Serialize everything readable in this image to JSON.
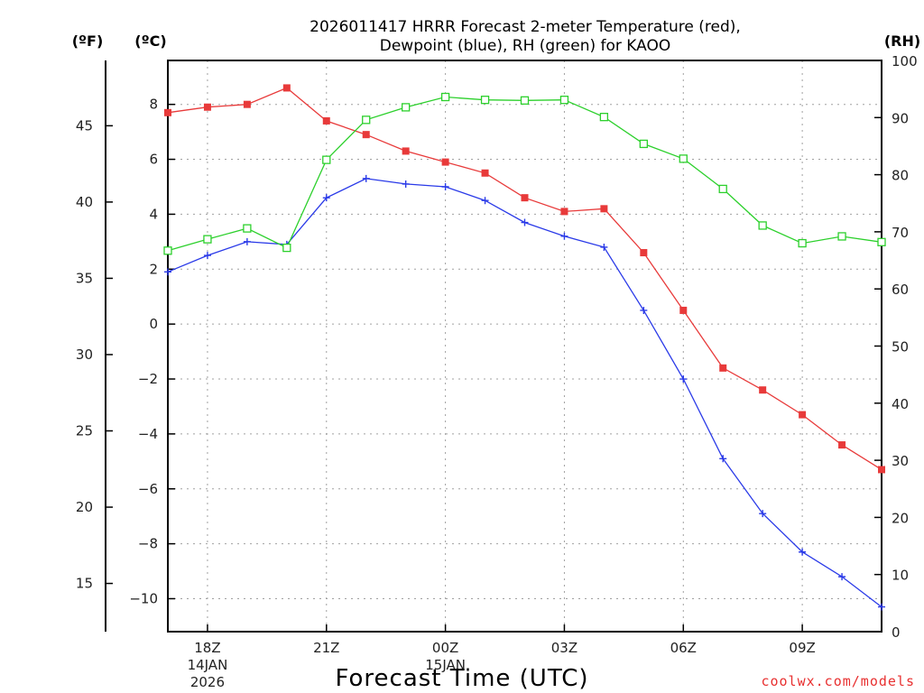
{
  "chart_data": {
    "type": "line",
    "title_line1": "2026011417 HRRR Forecast 2-meter Temperature (red),",
    "title_line2": "Dewpoint (blue), RH (green) for KAOO",
    "xlabel": "Forecast Time (UTC)",
    "credit": "coolwx.com/models",
    "unit_f": "(ºF)",
    "unit_c": "(ºC)",
    "unit_rh": "(RH)",
    "x_hours": [
      17,
      18,
      19,
      20,
      21,
      22,
      23,
      24,
      25,
      26,
      27,
      28,
      29,
      30,
      31,
      32,
      33,
      34,
      35
    ],
    "xlim": [
      17,
      35
    ],
    "ylim_c": [
      -11.2,
      9.6
    ],
    "ylim_rh": [
      0,
      100
    ],
    "x_ticks": [
      {
        "hour": 18,
        "label": "18Z",
        "sub1": "14JAN",
        "sub2": "2026"
      },
      {
        "hour": 21,
        "label": "21Z",
        "sub1": "",
        "sub2": ""
      },
      {
        "hour": 24,
        "label": "00Z",
        "sub1": "15JAN",
        "sub2": ""
      },
      {
        "hour": 27,
        "label": "03Z",
        "sub1": "",
        "sub2": ""
      },
      {
        "hour": 30,
        "label": "06Z",
        "sub1": "",
        "sub2": ""
      },
      {
        "hour": 33,
        "label": "09Z",
        "sub1": "",
        "sub2": ""
      }
    ],
    "c_ticks": [
      {
        "v": 8,
        "label": "8"
      },
      {
        "v": 6,
        "label": "6"
      },
      {
        "v": 4,
        "label": "4"
      },
      {
        "v": 2,
        "label": "2"
      },
      {
        "v": 0,
        "label": "0"
      },
      {
        "v": -2,
        "label": "−2"
      },
      {
        "v": -4,
        "label": "−4"
      },
      {
        "v": -6,
        "label": "−6"
      },
      {
        "v": -8,
        "label": "−8"
      },
      {
        "v": -10,
        "label": "−10"
      }
    ],
    "f_ticks": [
      {
        "v": 45,
        "label": "45"
      },
      {
        "v": 40,
        "label": "40"
      },
      {
        "v": 35,
        "label": "35"
      },
      {
        "v": 30,
        "label": "30"
      },
      {
        "v": 25,
        "label": "25"
      },
      {
        "v": 20,
        "label": "20"
      },
      {
        "v": 15,
        "label": "15"
      }
    ],
    "rh_ticks": [
      {
        "v": 100,
        "label": "100"
      },
      {
        "v": 90,
        "label": "90"
      },
      {
        "v": 80,
        "label": "80"
      },
      {
        "v": 70,
        "label": "70"
      },
      {
        "v": 60,
        "label": "60"
      },
      {
        "v": 50,
        "label": "50"
      },
      {
        "v": 40,
        "label": "40"
      },
      {
        "v": 30,
        "label": "30"
      },
      {
        "v": 20,
        "label": "20"
      },
      {
        "v": 10,
        "label": "10"
      },
      {
        "v": 0,
        "label": "0"
      }
    ],
    "series": [
      {
        "name": "Temperature",
        "color": "#e83a3a",
        "axis": "c",
        "marker": "filled-square",
        "values": [
          7.7,
          7.9,
          8.0,
          8.6,
          7.4,
          6.9,
          6.3,
          5.9,
          5.5,
          4.6,
          4.1,
          4.2,
          2.6,
          0.5,
          -1.6,
          -2.4,
          -3.3,
          -4.4,
          -5.3
        ]
      },
      {
        "name": "Dewpoint",
        "color": "#2a3ae8",
        "axis": "c",
        "marker": "plus",
        "values": [
          1.9,
          2.5,
          3.0,
          2.9,
          4.6,
          5.3,
          5.1,
          5.0,
          4.5,
          3.7,
          3.2,
          2.8,
          0.5,
          -2.0,
          -4.9,
          -6.9,
          -8.3,
          -9.2,
          -10.3
        ]
      },
      {
        "name": "RH",
        "color": "#2cd02c",
        "axis": "rh",
        "marker": "open-square",
        "values": [
          66.7,
          68.7,
          70.6,
          67.2,
          82.6,
          89.6,
          91.8,
          93.6,
          93.1,
          93.0,
          93.1,
          90.1,
          85.4,
          82.8,
          77.5,
          71.1,
          68.0,
          69.2,
          68.2
        ]
      }
    ]
  }
}
